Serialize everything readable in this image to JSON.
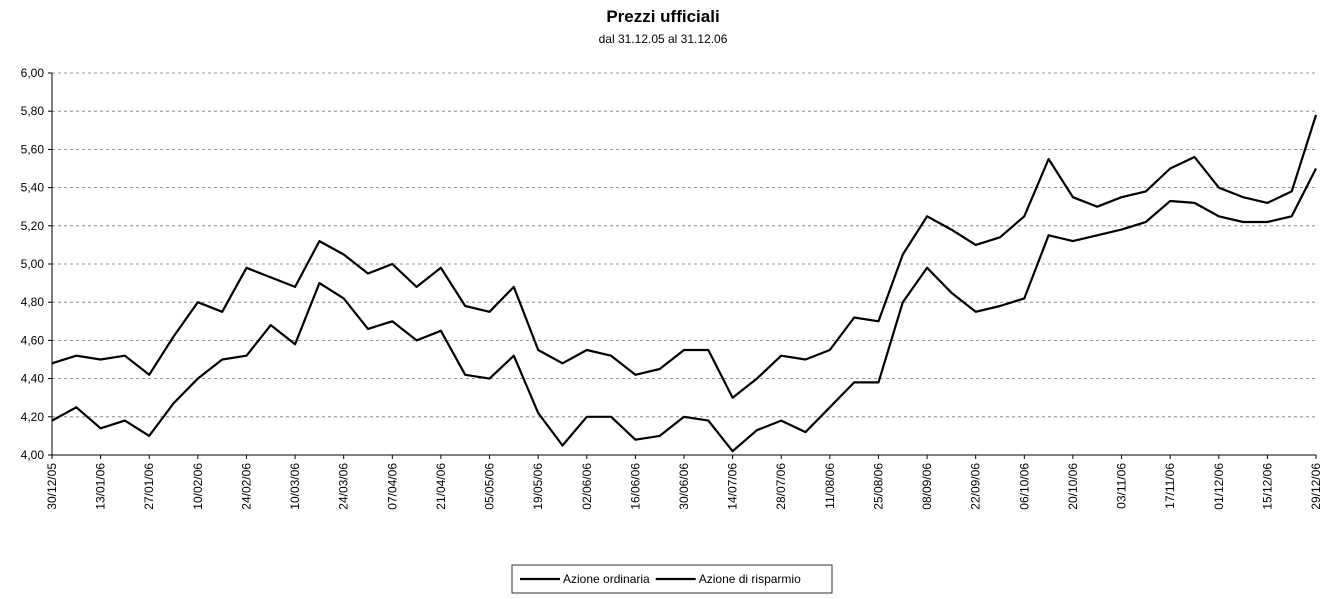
{
  "chart_data": {
    "type": "line",
    "title": "Prezzi ufficiali",
    "subtitle": "dal 31.12.05 al 31.12.06",
    "categories": [
      "30/12/05",
      null,
      "13/01/06",
      null,
      "27/01/06",
      null,
      "10/02/06",
      null,
      "24/02/06",
      null,
      "10/03/06",
      null,
      "24/03/06",
      null,
      "07/04/06",
      null,
      "21/04/06",
      null,
      "05/05/06",
      null,
      "19/05/06",
      null,
      "02/06/06",
      null,
      "16/06/06",
      null,
      "30/06/06",
      null,
      "14/07/06",
      null,
      "28/07/06",
      null,
      "11/08/06",
      null,
      "25/08/06",
      null,
      "08/09/06",
      null,
      "22/09/06",
      null,
      "06/10/06",
      null,
      "20/10/06",
      null,
      "03/11/06",
      null,
      "17/11/06",
      null,
      "01/12/06",
      null,
      "15/12/06",
      null,
      "29/12/06"
    ],
    "series": [
      {
        "name": "Azione ordinaria",
        "color": "#000000",
        "values": [
          4.48,
          4.52,
          4.5,
          4.52,
          4.42,
          4.62,
          4.8,
          4.75,
          4.98,
          4.93,
          4.88,
          5.12,
          5.05,
          4.95,
          5.0,
          4.88,
          4.98,
          4.78,
          4.75,
          4.88,
          4.55,
          4.48,
          4.55,
          4.52,
          4.42,
          4.45,
          4.55,
          4.55,
          4.3,
          4.4,
          4.52,
          4.5,
          4.55,
          4.72,
          4.7,
          5.05,
          5.25,
          5.18,
          5.1,
          5.14,
          5.25,
          5.55,
          5.35,
          5.3,
          5.35,
          5.38,
          5.5,
          5.56,
          5.4,
          5.35,
          5.32,
          5.38,
          5.78
        ]
      },
      {
        "name": "Azione di risparmio",
        "color": "#000000",
        "values": [
          4.18,
          4.25,
          4.14,
          4.18,
          4.1,
          4.27,
          4.4,
          4.5,
          4.52,
          4.68,
          4.58,
          4.9,
          4.82,
          4.66,
          4.7,
          4.6,
          4.65,
          4.42,
          4.4,
          4.52,
          4.22,
          4.05,
          4.2,
          4.2,
          4.08,
          4.1,
          4.2,
          4.18,
          4.02,
          4.13,
          4.18,
          4.12,
          4.25,
          4.38,
          4.38,
          4.8,
          4.98,
          4.85,
          4.75,
          4.78,
          4.82,
          5.15,
          5.12,
          5.15,
          5.18,
          5.22,
          5.33,
          5.32,
          5.25,
          5.22,
          5.22,
          5.25,
          5.5
        ]
      }
    ],
    "ylim": [
      4.0,
      6.0
    ],
    "yticks": [
      {
        "value": 4.0,
        "label": "4,00"
      },
      {
        "value": 4.2,
        "label": "4,20"
      },
      {
        "value": 4.4,
        "label": "4,40"
      },
      {
        "value": 4.6,
        "label": "4,60"
      },
      {
        "value": 4.8,
        "label": "4,80"
      },
      {
        "value": 5.0,
        "label": "5,00"
      },
      {
        "value": 5.2,
        "label": "5,20"
      },
      {
        "value": 5.4,
        "label": "5,40"
      },
      {
        "value": 5.6,
        "label": "5,60"
      },
      {
        "value": 5.8,
        "label": "5,80"
      },
      {
        "value": 6.0,
        "label": "6,00"
      }
    ],
    "grid": true,
    "legend": "bottom"
  }
}
